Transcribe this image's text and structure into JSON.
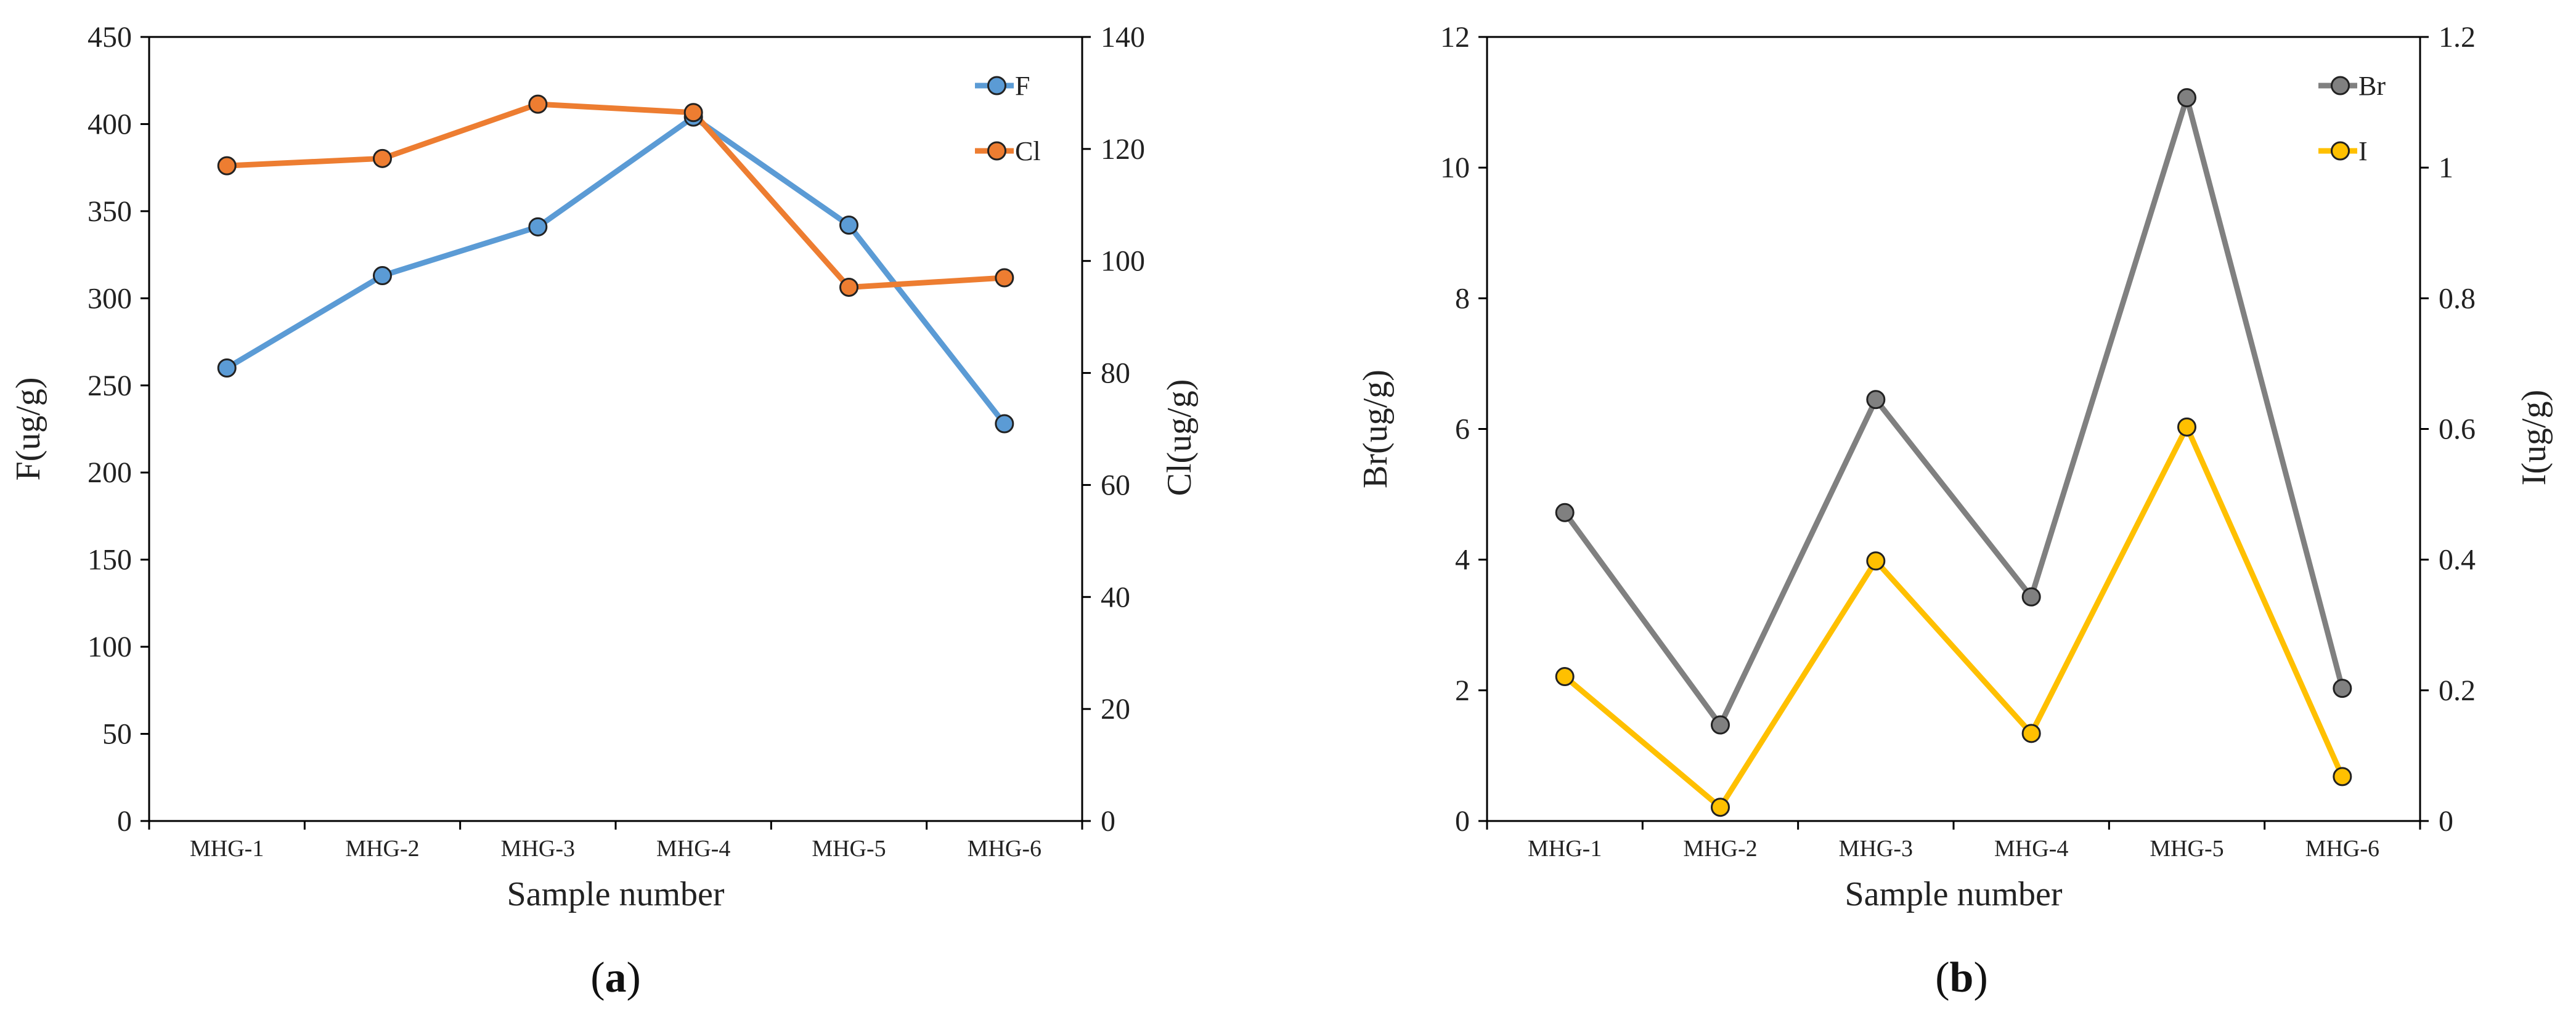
{
  "chart_data": [
    {
      "type": "line",
      "panel_label": "a",
      "xlabel": "Sample number",
      "categories": [
        "MHG-1",
        "MHG-2",
        "MHG-3",
        "MHG-4",
        "MHG-5",
        "MHG-6"
      ],
      "left_axis": {
        "label": "F(ug/g)",
        "ylim": [
          0,
          450
        ],
        "ticks": [
          0,
          50,
          100,
          150,
          200,
          250,
          300,
          350,
          400,
          450
        ]
      },
      "right_axis": {
        "label": "Cl(ug/g)",
        "ylim": [
          0,
          140
        ],
        "ticks": [
          0,
          20,
          40,
          60,
          80,
          100,
          120,
          140
        ]
      },
      "series": [
        {
          "name": "F",
          "axis": "left",
          "color": "#5b9bd5",
          "values": [
            260,
            313,
            341,
            404,
            342,
            228
          ]
        },
        {
          "name": "Cl",
          "axis": "right",
          "color": "#ed7d31",
          "values": [
            117,
            118.3,
            128,
            126.5,
            95.3,
            97
          ]
        }
      ],
      "legend_position": "top-right"
    },
    {
      "type": "line",
      "panel_label": "b",
      "xlabel": "Sample number",
      "categories": [
        "MHG-1",
        "MHG-2",
        "MHG-3",
        "MHG-4",
        "MHG-5",
        "MHG-6"
      ],
      "left_axis": {
        "label": "Br(ug/g)",
        "ylim": [
          0,
          12
        ],
        "ticks": [
          0,
          2,
          4,
          6,
          8,
          10,
          12
        ]
      },
      "right_axis": {
        "label": "I(ug/g)",
        "ylim": [
          0,
          1.2
        ],
        "ticks": [
          "0",
          "0.2",
          "0.4",
          "0.6",
          "0.8",
          "1",
          "1.2"
        ]
      },
      "series": [
        {
          "name": "Br",
          "axis": "left",
          "color": "#808080",
          "values": [
            4.72,
            1.47,
            6.45,
            3.43,
            11.07,
            2.03
          ]
        },
        {
          "name": "I",
          "axis": "right",
          "color": "#ffc000",
          "values": [
            0.221,
            0.021,
            0.398,
            0.134,
            0.603,
            0.068
          ]
        }
      ],
      "legend_position": "top-right"
    }
  ]
}
